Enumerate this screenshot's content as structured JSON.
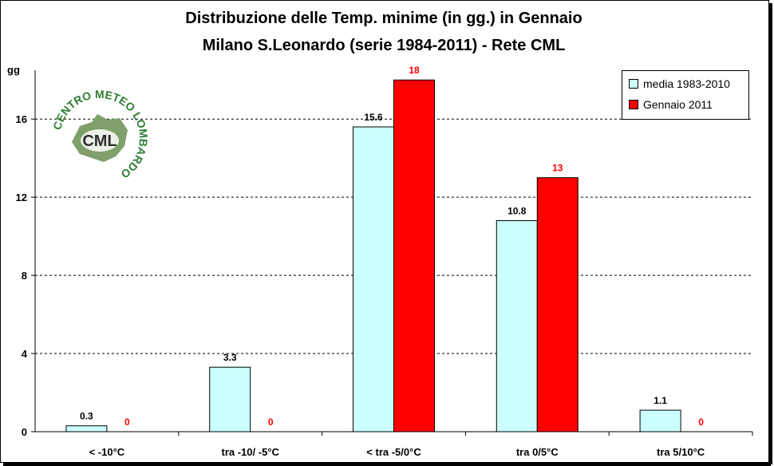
{
  "title_line1": "Distribuzione delle Temp. minime (in gg.) in Gennaio",
  "title_line2": "Milano S.Leonardo (serie 1984-2011) - Rete CML",
  "logo": {
    "ring_text": "CENTRO METEO LOMBARDO",
    "center_text": "CML"
  },
  "chart_data": {
    "type": "bar",
    "ylabel": "gg",
    "ylim": [
      0,
      18.5
    ],
    "yticks": [
      0,
      4,
      8,
      12,
      16
    ],
    "grid": true,
    "legend_position": "top-right",
    "categories": [
      "< -10°C",
      "tra -10/ -5°C",
      "< tra -5/0°C",
      "tra 0/5°C",
      "tra 5/10°C"
    ],
    "series": [
      {
        "name": "media 1983-2010",
        "color": "#ccffff",
        "label_color": "#000000",
        "values": [
          0.3,
          3.3,
          15.6,
          10.8,
          1.1
        ],
        "labels": [
          "0.3",
          "3.3",
          "15.6",
          "10.8",
          "1.1"
        ]
      },
      {
        "name": "Gennaio 2011",
        "color": "#ff0000",
        "label_color": "#ff0000",
        "values": [
          0,
          0,
          18,
          13,
          0
        ],
        "labels": [
          "0",
          "0",
          "18",
          "13",
          "0"
        ]
      }
    ]
  }
}
